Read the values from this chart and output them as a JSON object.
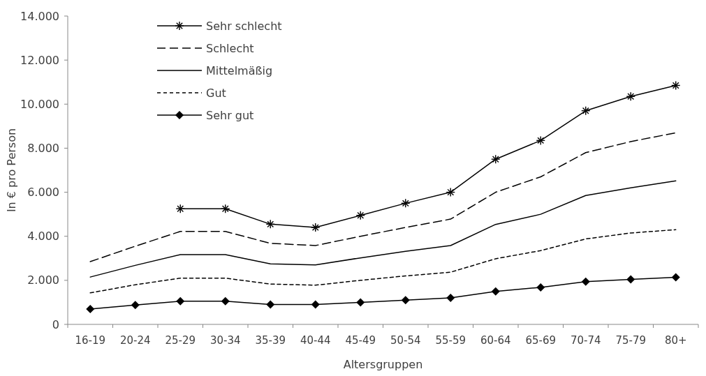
{
  "chart_data": {
    "type": "line",
    "xlabel": "Altersgruppen",
    "ylabel": "In € pro Person",
    "categories": [
      "16-19",
      "20-24",
      "25-29",
      "30-34",
      "35-39",
      "40-44",
      "45-49",
      "50-54",
      "55-59",
      "60-64",
      "65-69",
      "70-74",
      "75-79",
      "80+"
    ],
    "series": [
      {
        "name": "Sehr schlecht",
        "color": "#000000",
        "marker": "cross",
        "line_style": "solid",
        "values": [
          null,
          null,
          5250,
          5250,
          4550,
          4400,
          4950,
          5500,
          6000,
          7500,
          8350,
          9700,
          10350,
          10850
        ]
      },
      {
        "name": "Schlecht",
        "color": "#000000",
        "marker": "none",
        "line_style": "dashed",
        "values": [
          2850,
          3550,
          4220,
          4220,
          3680,
          3580,
          4000,
          4400,
          4780,
          6000,
          6700,
          7800,
          8300,
          8700
        ]
      },
      {
        "name": "Mittelmäßig",
        "color": "#000000",
        "marker": "none",
        "line_style": "solid",
        "values": [
          2150,
          2680,
          3170,
          3170,
          2750,
          2700,
          3020,
          3320,
          3580,
          4540,
          5000,
          5850,
          6200,
          6520
        ]
      },
      {
        "name": "Gut",
        "color": "#000000",
        "marker": "none",
        "line_style": "dotted",
        "values": [
          1430,
          1800,
          2100,
          2100,
          1830,
          1780,
          2000,
          2200,
          2370,
          2980,
          3350,
          3880,
          4150,
          4300
        ]
      },
      {
        "name": "Sehr gut",
        "color": "#000000",
        "marker": "diamond",
        "line_style": "solid",
        "values": [
          700,
          880,
          1050,
          1050,
          900,
          900,
          1000,
          1100,
          1200,
          1500,
          1680,
          1940,
          2040,
          2140
        ]
      }
    ],
    "ylim": [
      0,
      14000
    ],
    "yticks": [
      {
        "value": 0,
        "label": "0"
      },
      {
        "value": 2000,
        "label": "2.000"
      },
      {
        "value": 4000,
        "label": "4.000"
      },
      {
        "value": 6000,
        "label": "6.000"
      },
      {
        "value": 8000,
        "label": "8.000"
      },
      {
        "value": 10000,
        "label": "10.000"
      },
      {
        "value": 12000,
        "label": "12.000"
      },
      {
        "value": 14000,
        "label": "14.000"
      }
    ],
    "grid": false,
    "legend": "top left"
  }
}
